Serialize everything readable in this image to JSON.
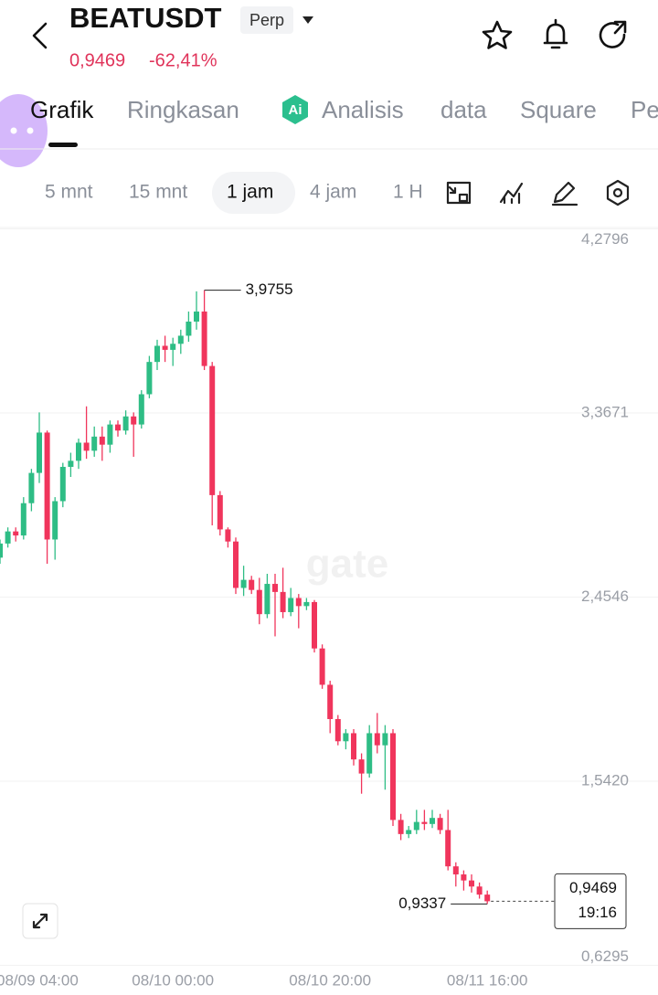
{
  "header": {
    "symbol": "BEATUSDT",
    "badge": "Perp",
    "price": "0,9469",
    "change": "-62,41%"
  },
  "tabs": [
    "Grafik",
    "Ringkasan",
    "Analisis",
    "data",
    "Square",
    "Pe"
  ],
  "intervals": [
    "5 mnt",
    "15 mnt",
    "1 jam",
    "4 jam",
    "1 H"
  ],
  "watermark": "gate",
  "chart_data": {
    "type": "candlestick",
    "categories": [
      null,
      null,
      "08/09 04:00",
      null,
      null,
      null,
      null,
      null,
      null,
      null,
      null,
      null,
      null,
      null,
      null,
      null,
      null,
      null,
      null,
      null,
      null,
      null,
      "08/10 00:00",
      null,
      null,
      null,
      null,
      null,
      null,
      null,
      null,
      null,
      null,
      null,
      null,
      null,
      null,
      null,
      null,
      null,
      null,
      null,
      "08/10 20:00",
      null,
      null,
      null,
      null,
      null,
      null,
      null,
      null,
      null,
      null,
      null,
      null,
      null,
      null,
      null,
      null,
      null,
      null,
      null,
      "08/11 16:00"
    ],
    "open": [
      2.65,
      2.72,
      2.78,
      2.76,
      2.92,
      3.07,
      3.27,
      2.74,
      2.93,
      3.1,
      3.13,
      3.22,
      3.18,
      3.25,
      3.21,
      3.31,
      3.28,
      3.35,
      3.31,
      3.46,
      3.62,
      3.7,
      3.68,
      3.71,
      3.75,
      3.82,
      3.87,
      3.6,
      2.96,
      2.79,
      2.73,
      2.5,
      2.54,
      2.49,
      2.37,
      2.52,
      2.48,
      2.38,
      2.45,
      2.41,
      2.43,
      2.2,
      2.02,
      1.85,
      1.74,
      1.78,
      1.65,
      1.58,
      1.78,
      1.72,
      1.78,
      1.35,
      1.28,
      1.3,
      1.34,
      1.33,
      1.36,
      1.3,
      1.12,
      1.08,
      1.05,
      1.02,
      0.98
    ],
    "high": [
      2.74,
      2.8,
      2.8,
      2.95,
      3.09,
      3.37,
      3.28,
      2.95,
      3.12,
      3.17,
      3.24,
      3.4,
      3.3,
      3.3,
      3.33,
      3.33,
      3.38,
      3.37,
      3.48,
      3.65,
      3.73,
      3.75,
      3.74,
      3.78,
      3.87,
      3.97,
      3.9755,
      3.62,
      2.98,
      2.8,
      2.75,
      2.61,
      2.56,
      2.55,
      2.57,
      2.57,
      2.6,
      2.5,
      2.47,
      2.45,
      2.44,
      2.22,
      2.04,
      1.87,
      1.8,
      1.8,
      1.68,
      1.82,
      1.88,
      1.82,
      1.8,
      1.38,
      1.32,
      1.4,
      1.4,
      1.4,
      1.38,
      1.4,
      1.14,
      1.1,
      1.08,
      1.04,
      1.0
    ],
    "low": [
      2.62,
      2.7,
      2.73,
      2.74,
      2.88,
      3.02,
      2.62,
      2.64,
      2.9,
      3.05,
      3.09,
      3.14,
      3.15,
      3.13,
      3.17,
      3.25,
      3.26,
      3.15,
      3.29,
      3.44,
      3.58,
      3.62,
      3.6,
      3.66,
      3.72,
      3.78,
      3.58,
      2.81,
      2.76,
      2.7,
      2.47,
      2.46,
      2.47,
      2.32,
      2.35,
      2.26,
      2.35,
      2.36,
      2.3,
      2.39,
      2.18,
      2.0,
      1.78,
      1.72,
      1.7,
      1.62,
      1.48,
      1.56,
      1.68,
      1.5,
      1.32,
      1.25,
      1.26,
      1.28,
      1.3,
      1.31,
      1.28,
      1.1,
      1.02,
      1.0,
      0.99,
      0.96,
      0.9337
    ],
    "close": [
      2.72,
      2.78,
      2.76,
      2.92,
      3.07,
      3.27,
      2.74,
      2.93,
      3.1,
      3.13,
      3.22,
      3.18,
      3.25,
      3.21,
      3.31,
      3.28,
      3.35,
      3.31,
      3.46,
      3.62,
      3.7,
      3.68,
      3.71,
      3.75,
      3.82,
      3.87,
      3.6,
      2.96,
      2.79,
      2.73,
      2.5,
      2.54,
      2.49,
      2.37,
      2.52,
      2.48,
      2.38,
      2.45,
      2.41,
      2.43,
      2.2,
      2.02,
      1.85,
      1.74,
      1.78,
      1.65,
      1.58,
      1.78,
      1.72,
      1.78,
      1.35,
      1.28,
      1.3,
      1.34,
      1.33,
      1.36,
      1.3,
      1.12,
      1.08,
      1.05,
      1.02,
      0.98,
      0.9469
    ],
    "up_color": "#2ebd85",
    "down_color": "#f0355c",
    "ylim": [
      0.6295,
      4.2796
    ],
    "yticks": [
      {
        "value": 0.6295,
        "label": "0,6295"
      },
      {
        "value": 1.542,
        "label": "1,5420"
      },
      {
        "value": 2.4546,
        "label": "2,4546"
      },
      {
        "value": 3.3671,
        "label": "3,3671"
      },
      {
        "value": 4.2796,
        "label": "4,2796"
      }
    ],
    "grid": true,
    "annotations": [
      {
        "value": 3.9755,
        "label": "3,9755",
        "kind": "high"
      },
      {
        "value": 0.9337,
        "label": "0,9337",
        "kind": "low"
      }
    ],
    "last_price": {
      "value": 0.9469,
      "label": "0,9469"
    },
    "countdown": "19:16"
  }
}
